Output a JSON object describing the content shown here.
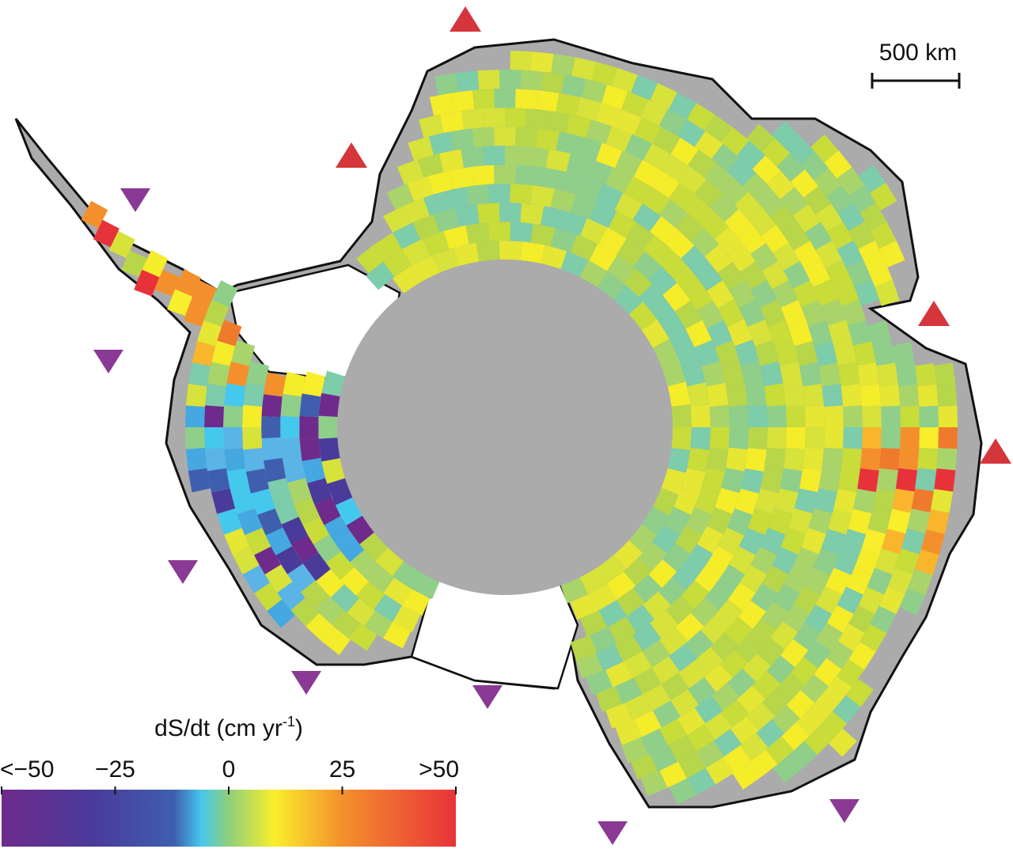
{
  "map": {
    "scale_bar": {
      "label": "500 km"
    },
    "colorbar": {
      "title": "dS/dt (cm yr",
      "title_sup": "-1",
      "title_end": ")",
      "range": [
        -50,
        50
      ],
      "ticks": [
        {
          "value": -50,
          "label": "<−50"
        },
        {
          "value": -25,
          "label": "−25"
        },
        0,
        25,
        {
          "value": 50,
          "label": ">50"
        }
      ]
    }
  }
}
